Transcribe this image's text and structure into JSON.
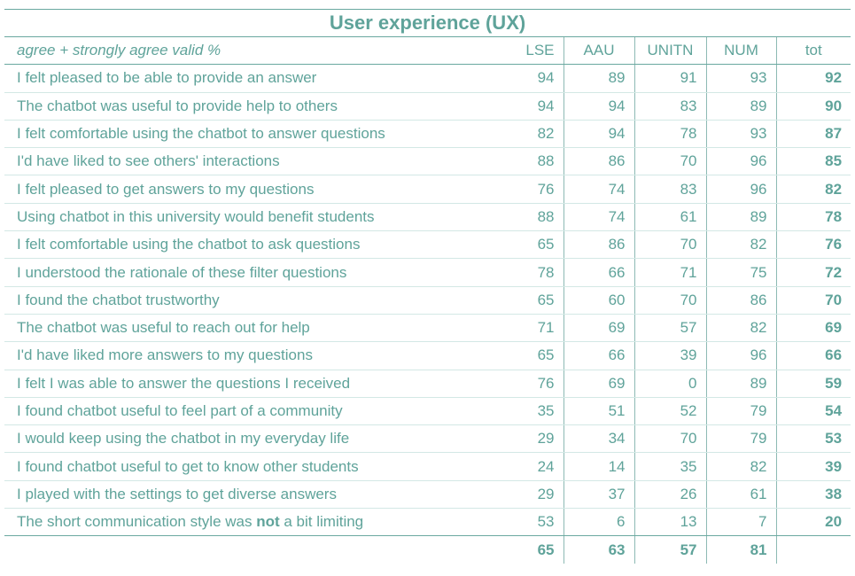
{
  "title": "User experience (UX)",
  "header": {
    "label": "agree + strongly agree valid %",
    "columns": [
      "LSE",
      "AAU",
      "UNITN",
      "NUM",
      "tot"
    ]
  },
  "rows": [
    {
      "label": "I felt pleased to be able to provide an answer",
      "values": [
        94,
        89,
        91,
        93,
        92
      ]
    },
    {
      "label": "The chatbot was useful to provide help to others",
      "values": [
        94,
        94,
        83,
        89,
        90
      ]
    },
    {
      "label": "I felt comfortable using the chatbot to answer questions",
      "values": [
        82,
        94,
        78,
        93,
        87
      ]
    },
    {
      "label": "I'd have liked to see others' interactions",
      "values": [
        88,
        86,
        70,
        96,
        85
      ]
    },
    {
      "label": "I felt pleased to get answers to my questions",
      "values": [
        76,
        74,
        83,
        96,
        82
      ]
    },
    {
      "label": "Using chatbot in this university would benefit students",
      "values": [
        88,
        74,
        61,
        89,
        78
      ]
    },
    {
      "label": "I felt comfortable using the chatbot to ask questions",
      "values": [
        65,
        86,
        70,
        82,
        76
      ]
    },
    {
      "label": "I understood the rationale of these filter questions",
      "values": [
        78,
        66,
        71,
        75,
        72
      ]
    },
    {
      "label": "I found the chatbot trustworthy",
      "values": [
        65,
        60,
        70,
        86,
        70
      ]
    },
    {
      "label": "The chatbot was useful to reach out for help",
      "values": [
        71,
        69,
        57,
        82,
        69
      ]
    },
    {
      "label": "I'd have liked more answers to my questions",
      "values": [
        65,
        66,
        39,
        96,
        66
      ]
    },
    {
      "label": "I felt I was able to answer the questions I received",
      "values": [
        76,
        69,
        0,
        89,
        59
      ]
    },
    {
      "label": "I found chatbot useful to feel part of a community",
      "values": [
        35,
        51,
        52,
        79,
        54
      ]
    },
    {
      "label": "I would keep using the chatbot in my everyday life",
      "values": [
        29,
        34,
        70,
        79,
        53
      ]
    },
    {
      "label": "I found chatbot useful to get to know other students",
      "values": [
        24,
        14,
        35,
        82,
        39
      ]
    },
    {
      "label": "I played with the settings to get diverse answers",
      "values": [
        29,
        37,
        26,
        61,
        38
      ]
    },
    {
      "label_parts": [
        "The short communication style was ",
        "not",
        " a bit limiting"
      ],
      "values": [
        53,
        6,
        13,
        7,
        20
      ]
    }
  ],
  "footer": {
    "values": [
      65,
      63,
      57,
      81
    ]
  }
}
